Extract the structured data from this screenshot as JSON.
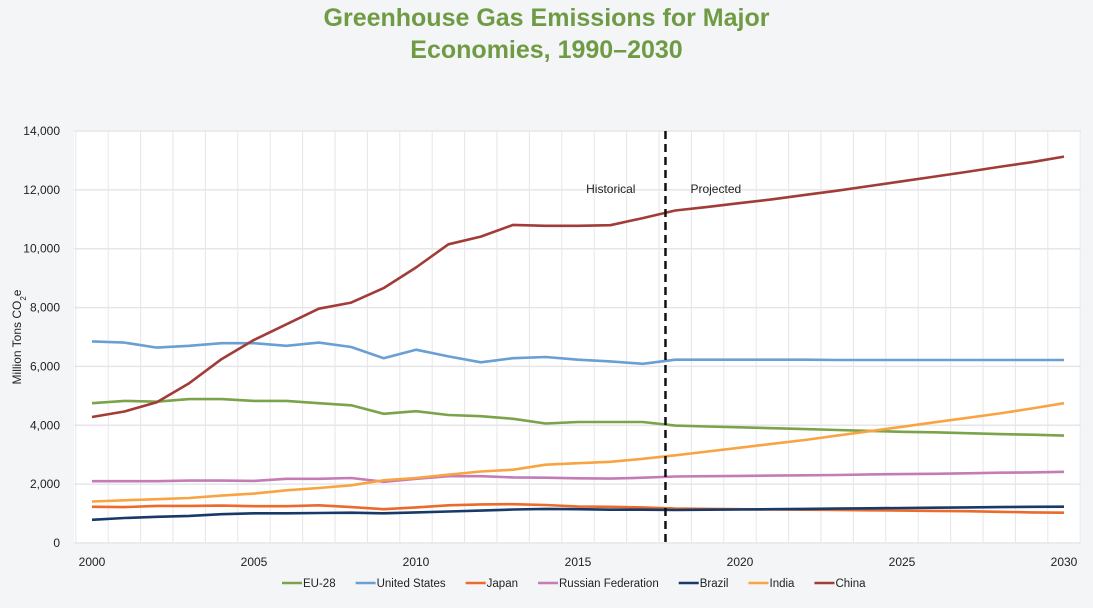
{
  "chart_data": {
    "type": "line",
    "title_line1": "Greenhouse Gas Emissions for Major",
    "title_line2": "Economies, 1990–2030",
    "xlabel": "",
    "ylabel": "Million Tons CO2e",
    "ylabel_main": "Million Tons CO",
    "ylabel_sub": "2",
    "ylabel_end": "e",
    "xlim": [
      2000,
      2030
    ],
    "ylim": [
      0,
      14000
    ],
    "x_ticks": [
      "2000",
      "2005",
      "2010",
      "2015",
      "2020",
      "2025",
      "2030"
    ],
    "y_ticks": [
      "0",
      "2,000",
      "4,000",
      "6,000",
      "8,000",
      "10,000",
      "12,000",
      "14,000"
    ],
    "grid": true,
    "legend_position": "bottom",
    "divider_year": 2017.7,
    "annotations": {
      "historical": "Historical",
      "projected": "Projected"
    },
    "x": [
      2000,
      2001,
      2002,
      2003,
      2004,
      2005,
      2006,
      2007,
      2008,
      2009,
      2010,
      2011,
      2012,
      2013,
      2014,
      2015,
      2016,
      2017,
      2018,
      2019,
      2020,
      2021,
      2022,
      2023,
      2024,
      2025,
      2026,
      2027,
      2028,
      2029,
      2030
    ],
    "series": [
      {
        "name": "EU-28",
        "color": "#7aa34a",
        "values": [
          4750,
          4830,
          4800,
          4890,
          4890,
          4830,
          4830,
          4750,
          4680,
          4390,
          4480,
          4350,
          4310,
          4220,
          4060,
          4110,
          4110,
          4110,
          3990,
          3960,
          3930,
          3900,
          3870,
          3840,
          3810,
          3780,
          3760,
          3730,
          3700,
          3680,
          3650
        ]
      },
      {
        "name": "United States",
        "color": "#6a9fd4",
        "values": [
          6850,
          6810,
          6640,
          6700,
          6790,
          6790,
          6700,
          6810,
          6660,
          6280,
          6570,
          6340,
          6140,
          6280,
          6320,
          6230,
          6170,
          6090,
          6230,
          6230,
          6230,
          6230,
          6230,
          6220,
          6220,
          6220,
          6220,
          6220,
          6220,
          6220,
          6220
        ]
      },
      {
        "name": "Japan",
        "color": "#eb6a2c",
        "values": [
          1230,
          1220,
          1260,
          1260,
          1270,
          1250,
          1250,
          1280,
          1220,
          1150,
          1210,
          1280,
          1310,
          1320,
          1290,
          1240,
          1230,
          1210,
          1170,
          1160,
          1150,
          1140,
          1130,
          1120,
          1110,
          1100,
          1090,
          1080,
          1060,
          1040,
          1030
        ]
      },
      {
        "name": "Russian Federation",
        "color": "#c47cb6",
        "values": [
          2100,
          2100,
          2100,
          2120,
          2120,
          2110,
          2180,
          2180,
          2210,
          2080,
          2180,
          2270,
          2270,
          2230,
          2220,
          2200,
          2190,
          2220,
          2260,
          2270,
          2280,
          2290,
          2300,
          2310,
          2330,
          2340,
          2350,
          2370,
          2390,
          2400,
          2420
        ]
      },
      {
        "name": "Brazil",
        "color": "#173a68",
        "values": [
          790,
          850,
          890,
          920,
          980,
          1010,
          1010,
          1020,
          1030,
          1010,
          1040,
          1070,
          1100,
          1140,
          1160,
          1150,
          1130,
          1130,
          1120,
          1130,
          1140,
          1150,
          1160,
          1170,
          1180,
          1190,
          1200,
          1210,
          1220,
          1230,
          1235
        ]
      },
      {
        "name": "India",
        "color": "#f8a443",
        "values": [
          1410,
          1450,
          1490,
          1530,
          1610,
          1680,
          1790,
          1870,
          1960,
          2130,
          2210,
          2320,
          2430,
          2490,
          2660,
          2710,
          2760,
          2860,
          2980,
          3110,
          3240,
          3370,
          3500,
          3650,
          3800,
          3950,
          4100,
          4250,
          4400,
          4570,
          4750
        ]
      },
      {
        "name": "China",
        "color": "#a13c38",
        "values": [
          4280,
          4470,
          4780,
          5430,
          6250,
          6900,
          7430,
          7960,
          8170,
          8660,
          9360,
          10150,
          10410,
          10810,
          10780,
          10780,
          10800,
          11040,
          11300,
          11420,
          11550,
          11680,
          11830,
          11970,
          12130,
          12290,
          12450,
          12610,
          12780,
          12940,
          13130
        ]
      }
    ]
  }
}
